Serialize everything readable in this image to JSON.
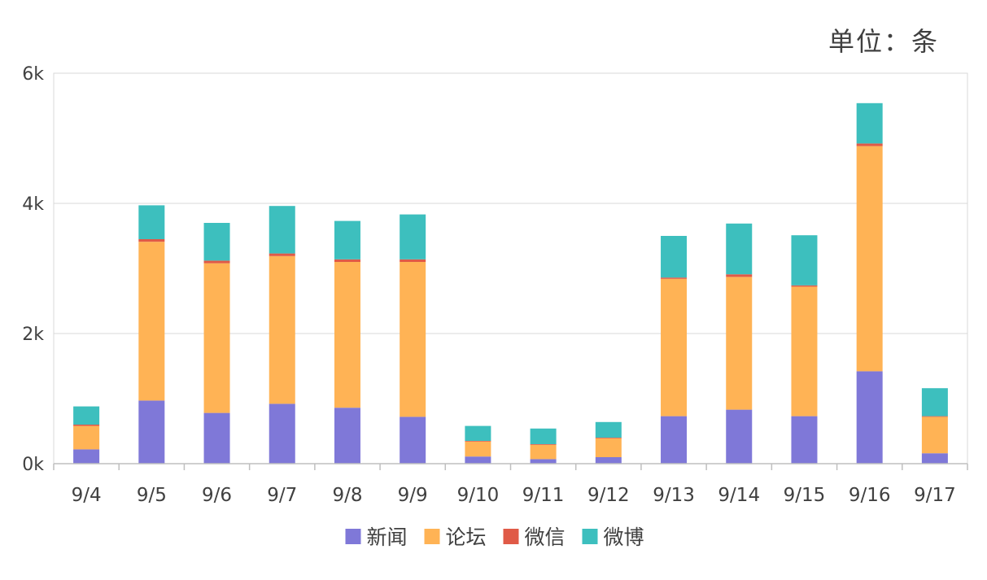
{
  "unit_label": "单位：条",
  "chart_data": {
    "type": "bar",
    "stacked": true,
    "categories": [
      "9/4",
      "9/5",
      "9/6",
      "9/7",
      "9/8",
      "9/9",
      "9/10",
      "9/11",
      "9/12",
      "9/13",
      "9/14",
      "9/15",
      "9/16",
      "9/17"
    ],
    "series": [
      {
        "name": "新闻",
        "color": "#7f78d8",
        "values": [
          220,
          970,
          780,
          920,
          860,
          720,
          110,
          70,
          100,
          730,
          830,
          730,
          1420,
          160
        ]
      },
      {
        "name": "论坛",
        "color": "#ffb355",
        "values": [
          360,
          2440,
          2300,
          2270,
          2240,
          2380,
          230,
          220,
          290,
          2110,
          2040,
          1990,
          3460,
          560
        ]
      },
      {
        "name": "微信",
        "color": "#e05a47",
        "values": [
          20,
          40,
          40,
          40,
          40,
          40,
          10,
          10,
          10,
          20,
          40,
          20,
          40,
          10
        ]
      },
      {
        "name": "微博",
        "color": "#3dbfbe",
        "values": [
          280,
          520,
          580,
          730,
          590,
          690,
          230,
          240,
          240,
          640,
          780,
          770,
          620,
          430
        ]
      }
    ],
    "y_ticks": [
      {
        "value": 0,
        "label": "0k"
      },
      {
        "value": 2000,
        "label": "2k"
      },
      {
        "value": 4000,
        "label": "4k"
      },
      {
        "value": 6000,
        "label": "6k"
      }
    ],
    "ylim": [
      0,
      6000
    ],
    "grid": true,
    "legend_position": "bottom"
  }
}
